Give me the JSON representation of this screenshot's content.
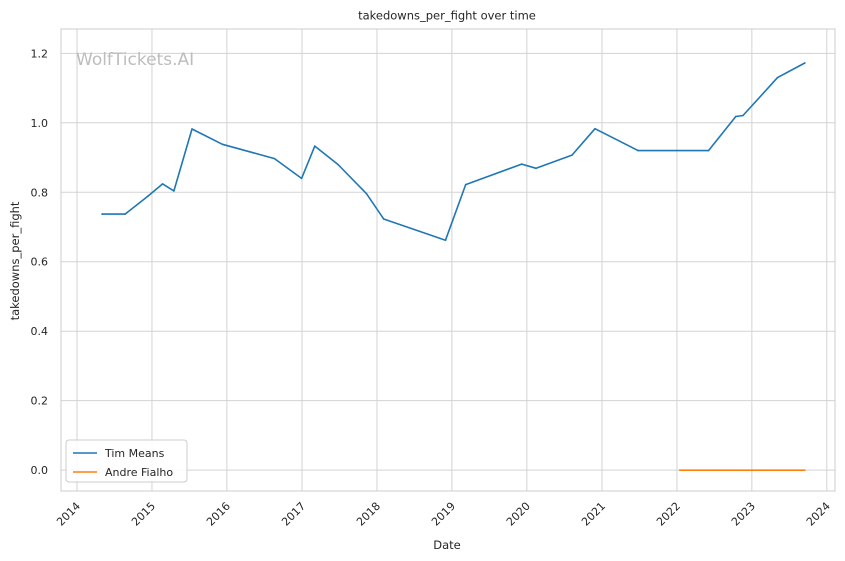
{
  "chart_data": {
    "type": "line",
    "title": "takedowns_per_fight over time",
    "xlabel": "Date",
    "ylabel": "takedowns_per_fight",
    "watermark": "WolfTickets.AI",
    "xlim": [
      "2013-10-15",
      "2024-02-10"
    ],
    "ylim": [
      -0.06,
      1.27
    ],
    "x_ticks": [
      "2014",
      "2015",
      "2016",
      "2017",
      "2018",
      "2019",
      "2020",
      "2021",
      "2022",
      "2023",
      "2024"
    ],
    "y_ticks": [
      "0.0",
      "0.2",
      "0.4",
      "0.6",
      "0.8",
      "1.0",
      "1.2"
    ],
    "grid": true,
    "legend_position": "lower-left",
    "series": [
      {
        "name": "Tim Means",
        "color": "#1f77b4",
        "points": [
          {
            "x": "2014-05-03",
            "y": 0.737
          },
          {
            "x": "2014-08-23",
            "y": 0.737
          },
          {
            "x": "2014-12-13",
            "y": 0.789
          },
          {
            "x": "2015-02-22",
            "y": 0.824
          },
          {
            "x": "2015-04-18",
            "y": 0.804
          },
          {
            "x": "2015-07-15",
            "y": 0.982
          },
          {
            "x": "2015-12-10",
            "y": 0.938
          },
          {
            "x": "2016-08-20",
            "y": 0.897
          },
          {
            "x": "2016-12-30",
            "y": 0.84
          },
          {
            "x": "2017-03-04",
            "y": 0.933
          },
          {
            "x": "2017-06-25",
            "y": 0.88
          },
          {
            "x": "2017-11-11",
            "y": 0.796
          },
          {
            "x": "2018-02-03",
            "y": 0.723
          },
          {
            "x": "2018-12-01",
            "y": 0.662
          },
          {
            "x": "2019-03-09",
            "y": 0.822
          },
          {
            "x": "2019-12-07",
            "y": 0.881
          },
          {
            "x": "2020-02-15",
            "y": 0.869
          },
          {
            "x": "2020-08-08",
            "y": 0.907
          },
          {
            "x": "2020-11-28",
            "y": 0.983
          },
          {
            "x": "2021-06-26",
            "y": 0.92
          },
          {
            "x": "2022-06-04",
            "y": 0.92
          },
          {
            "x": "2022-10-15",
            "y": 1.018
          },
          {
            "x": "2022-11-19",
            "y": 1.021
          },
          {
            "x": "2023-05-06",
            "y": 1.13
          },
          {
            "x": "2023-09-16",
            "y": 1.172
          }
        ]
      },
      {
        "name": "Andre Fialho",
        "color": "#ff7f0e",
        "points": [
          {
            "x": "2022-01-15",
            "y": 0.0
          },
          {
            "x": "2022-07-16",
            "y": 0.0
          },
          {
            "x": "2023-03-04",
            "y": 0.0
          },
          {
            "x": "2023-09-16",
            "y": 0.0
          }
        ]
      }
    ]
  }
}
